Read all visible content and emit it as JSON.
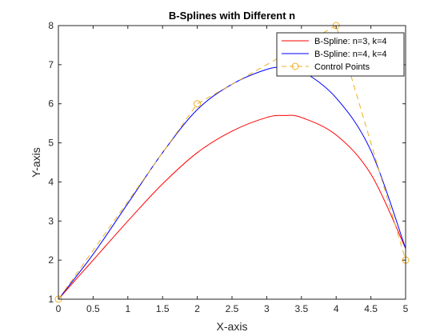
{
  "chart_data": {
    "type": "line",
    "title": "B-Splines with Different n",
    "xlabel": "X-axis",
    "ylabel": "Y-axis",
    "xlim": [
      0,
      5
    ],
    "ylim": [
      1,
      8
    ],
    "xticks": [
      0,
      0.5,
      1,
      1.5,
      2,
      2.5,
      3,
      3.5,
      4,
      4.5,
      5
    ],
    "xtick_labels": [
      "0",
      "0.5",
      "1",
      "1.5",
      "2",
      "2.5",
      "3",
      "3.5",
      "4",
      "4.5",
      "5"
    ],
    "yticks": [
      1,
      2,
      3,
      4,
      5,
      6,
      7,
      8
    ],
    "ytick_labels": [
      "1",
      "2",
      "3",
      "4",
      "5",
      "6",
      "7",
      "8"
    ],
    "grid": false,
    "legend_position": "top-right",
    "series": [
      {
        "name": "B-Spline: n=3, k=4",
        "color": "#ff0000",
        "style": "solid",
        "x": [
          0,
          0.5,
          1,
          1.5,
          2,
          2.5,
          3,
          3.25,
          3.5,
          4,
          4.5,
          5
        ],
        "y": [
          1,
          2.0,
          3.0,
          3.95,
          4.75,
          5.3,
          5.65,
          5.7,
          5.65,
          5.2,
          4.2,
          2.3
        ]
      },
      {
        "name": "B-Spline: n=4, k=4",
        "color": "#0000ff",
        "style": "solid",
        "x": [
          0,
          0.5,
          1,
          1.5,
          2,
          2.5,
          3,
          3.25,
          3.5,
          4,
          4.5,
          5
        ],
        "y": [
          1,
          2.15,
          3.45,
          4.75,
          5.85,
          6.5,
          6.88,
          6.93,
          6.85,
          6.15,
          4.8,
          2.3
        ]
      },
      {
        "name": "Control Points",
        "color": "#edb120",
        "style": "dashed",
        "marker": "circle",
        "x": [
          0,
          2,
          4,
          5
        ],
        "y": [
          1,
          6,
          8,
          2
        ]
      }
    ]
  }
}
